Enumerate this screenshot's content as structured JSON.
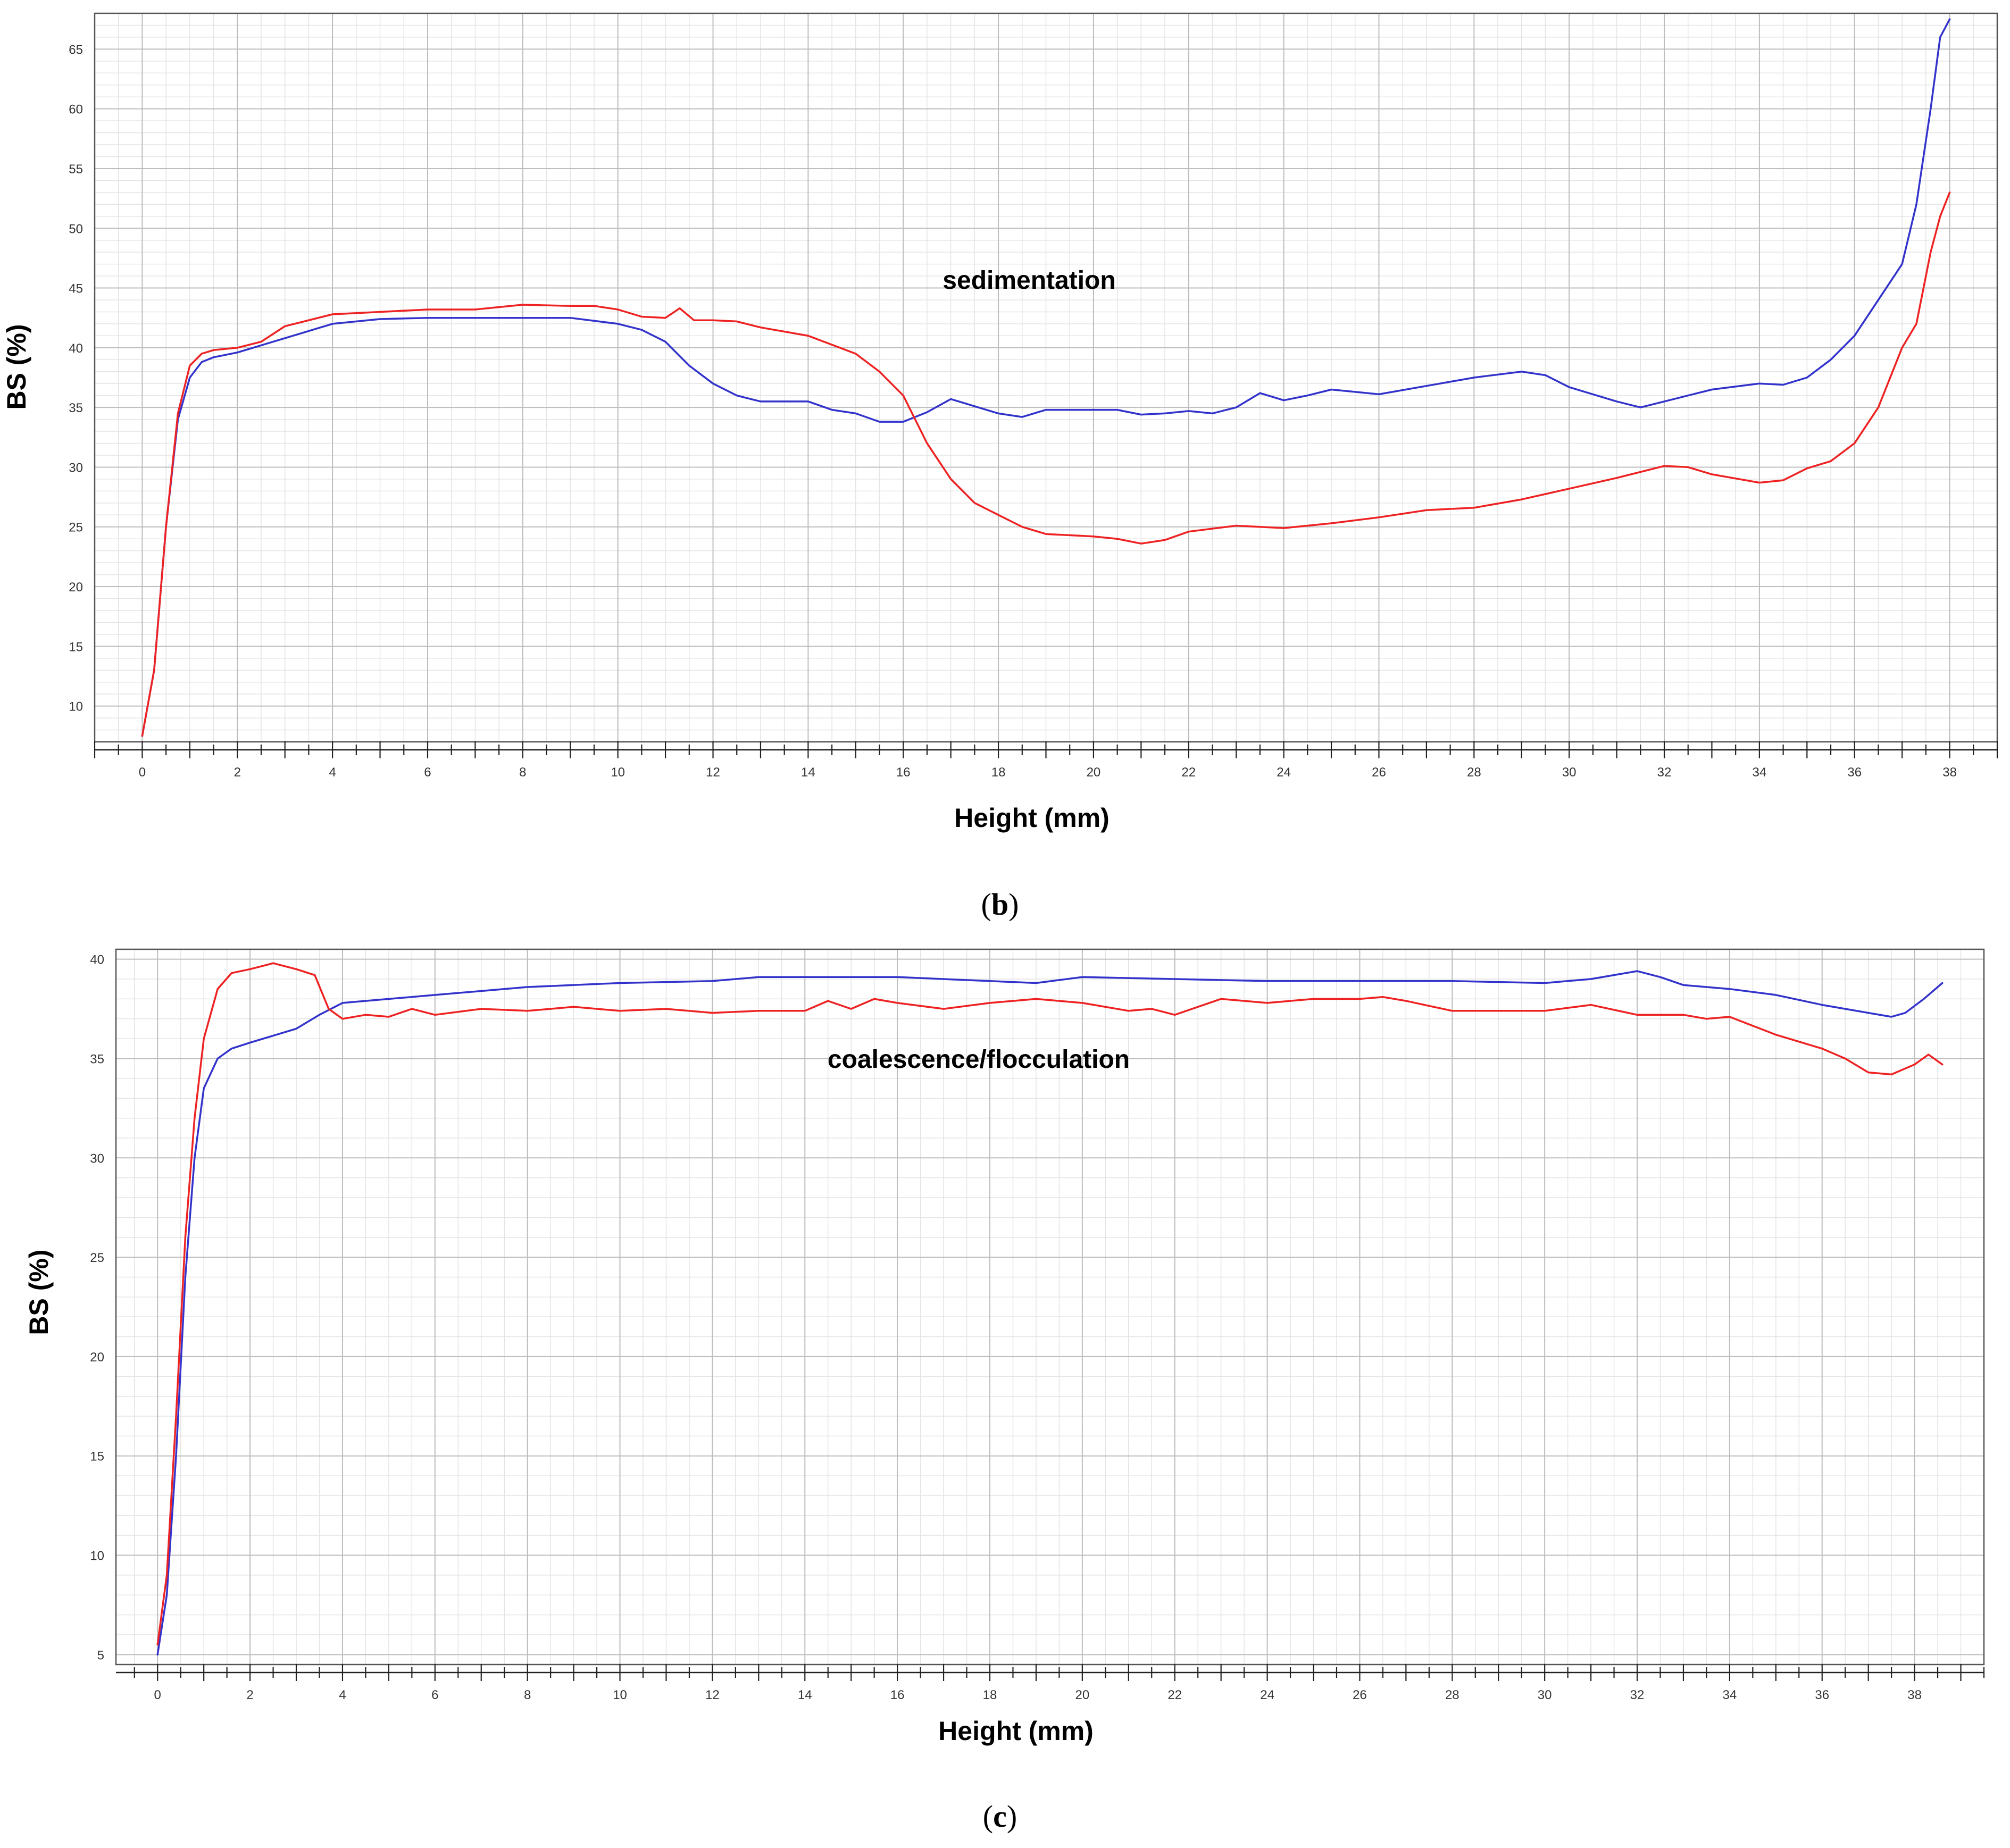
{
  "chart_data": [
    {
      "type": "line",
      "panel_label": "b",
      "annotation": "sedimentation",
      "xlabel": "Height (mm)",
      "ylabel": "BS  (%)",
      "xlim": [
        -1,
        39
      ],
      "ylim": [
        7,
        68
      ],
      "x_ticks": [
        0,
        2,
        4,
        6,
        8,
        10,
        12,
        14,
        16,
        18,
        20,
        22,
        24,
        26,
        28,
        30,
        32,
        34,
        36,
        38
      ],
      "y_ticks": [
        10,
        15,
        20,
        25,
        30,
        35,
        40,
        45,
        50,
        55,
        60,
        65
      ],
      "grid": true,
      "legend": "none",
      "series": [
        {
          "color": "#3333cc",
          "points": [
            [
              0,
              7.5
            ],
            [
              0.25,
              13
            ],
            [
              0.5,
              25
            ],
            [
              0.75,
              34
            ],
            [
              1,
              37.5
            ],
            [
              1.25,
              38.8
            ],
            [
              1.5,
              39.2
            ],
            [
              2,
              39.6
            ],
            [
              3,
              40.8
            ],
            [
              4,
              42
            ],
            [
              5,
              42.4
            ],
            [
              6,
              42.5
            ],
            [
              8,
              42.5
            ],
            [
              9,
              42.5
            ],
            [
              10,
              42
            ],
            [
              10.5,
              41.5
            ],
            [
              11,
              40.5
            ],
            [
              11.5,
              38.5
            ],
            [
              12,
              37
            ],
            [
              12.5,
              36
            ],
            [
              13,
              35.5
            ],
            [
              14,
              35.5
            ],
            [
              14.5,
              34.8
            ],
            [
              15,
              34.5
            ],
            [
              15.5,
              33.8
            ],
            [
              16,
              33.8
            ],
            [
              16.5,
              34.6
            ],
            [
              17,
              35.7
            ],
            [
              17.5,
              35.1
            ],
            [
              18,
              34.5
            ],
            [
              18.5,
              34.2
            ],
            [
              19,
              34.8
            ],
            [
              20,
              34.8
            ],
            [
              20.5,
              34.8
            ],
            [
              21,
              34.4
            ],
            [
              21.5,
              34.5
            ],
            [
              22,
              34.7
            ],
            [
              22.5,
              34.5
            ],
            [
              23,
              35
            ],
            [
              23.5,
              36.2
            ],
            [
              24,
              35.6
            ],
            [
              24.5,
              36
            ],
            [
              25,
              36.5
            ],
            [
              26,
              36.1
            ],
            [
              27,
              36.8
            ],
            [
              28,
              37.5
            ],
            [
              29,
              38
            ],
            [
              29.5,
              37.7
            ],
            [
              30,
              36.7
            ],
            [
              31,
              35.5
            ],
            [
              31.5,
              35
            ],
            [
              32,
              35.5
            ],
            [
              33,
              36.5
            ],
            [
              34,
              37
            ],
            [
              34.5,
              36.9
            ],
            [
              35,
              37.5
            ],
            [
              35.5,
              39
            ],
            [
              36,
              41
            ],
            [
              36.5,
              44
            ],
            [
              37,
              47
            ],
            [
              37.3,
              52
            ],
            [
              37.6,
              60
            ],
            [
              37.8,
              66
            ],
            [
              38,
              67.5
            ]
          ]
        },
        {
          "color": "#ee2222",
          "points": [
            [
              0,
              7.5
            ],
            [
              0.25,
              13
            ],
            [
              0.5,
              25
            ],
            [
              0.75,
              34.5
            ],
            [
              1,
              38.5
            ],
            [
              1.25,
              39.5
            ],
            [
              1.5,
              39.8
            ],
            [
              2,
              40
            ],
            [
              2.5,
              40.5
            ],
            [
              3,
              41.8
            ],
            [
              4,
              42.8
            ],
            [
              5,
              43
            ],
            [
              6,
              43.2
            ],
            [
              7,
              43.2
            ],
            [
              8,
              43.6
            ],
            [
              9,
              43.5
            ],
            [
              9.5,
              43.5
            ],
            [
              10,
              43.2
            ],
            [
              10.5,
              42.6
            ],
            [
              11,
              42.5
            ],
            [
              11.3,
              43.3
            ],
            [
              11.6,
              42.3
            ],
            [
              12,
              42.3
            ],
            [
              12.5,
              42.2
            ],
            [
              13,
              41.7
            ],
            [
              14,
              41
            ],
            [
              15,
              39.5
            ],
            [
              15.5,
              38
            ],
            [
              16,
              36
            ],
            [
              16.5,
              32
            ],
            [
              17,
              29
            ],
            [
              17.5,
              27
            ],
            [
              18,
              26
            ],
            [
              18.5,
              25
            ],
            [
              19,
              24.4
            ],
            [
              20,
              24.2
            ],
            [
              20.5,
              24
            ],
            [
              21,
              23.6
            ],
            [
              21.5,
              23.9
            ],
            [
              22,
              24.6
            ],
            [
              23,
              25.1
            ],
            [
              24,
              24.9
            ],
            [
              25,
              25.3
            ],
            [
              26,
              25.8
            ],
            [
              27,
              26.4
            ],
            [
              28,
              26.6
            ],
            [
              29,
              27.3
            ],
            [
              30,
              28.2
            ],
            [
              31,
              29.1
            ],
            [
              32,
              30.1
            ],
            [
              32.5,
              30
            ],
            [
              33,
              29.4
            ],
            [
              34,
              28.7
            ],
            [
              34.5,
              28.9
            ],
            [
              35,
              29.9
            ],
            [
              35.5,
              30.5
            ],
            [
              36,
              32
            ],
            [
              36.5,
              35
            ],
            [
              37,
              40
            ],
            [
              37.3,
              42
            ],
            [
              37.6,
              48
            ],
            [
              37.8,
              51
            ],
            [
              38,
              53
            ]
          ]
        }
      ]
    },
    {
      "type": "line",
      "panel_label": "c",
      "annotation": "coalescence/flocculation",
      "xlabel": "Height (mm)",
      "ylabel": "BS  (%)",
      "xlim": [
        -0.9,
        39.5
      ],
      "ylim": [
        4.5,
        40.5
      ],
      "x_ticks": [
        0,
        2,
        4,
        6,
        8,
        10,
        12,
        14,
        16,
        18,
        20,
        22,
        24,
        26,
        28,
        30,
        32,
        34,
        36,
        38
      ],
      "y_ticks": [
        5,
        10,
        15,
        20,
        25,
        30,
        35,
        40
      ],
      "grid": true,
      "legend": "none",
      "series": [
        {
          "color": "#3333cc",
          "points": [
            [
              0,
              5
            ],
            [
              0.2,
              8
            ],
            [
              0.4,
              15
            ],
            [
              0.6,
              24
            ],
            [
              0.8,
              30
            ],
            [
              1,
              33.5
            ],
            [
              1.3,
              35
            ],
            [
              1.6,
              35.5
            ],
            [
              2,
              35.8
            ],
            [
              3,
              36.5
            ],
            [
              3.5,
              37.2
            ],
            [
              4,
              37.8
            ],
            [
              5,
              38
            ],
            [
              6,
              38.2
            ],
            [
              7,
              38.4
            ],
            [
              8,
              38.6
            ],
            [
              10,
              38.8
            ],
            [
              12,
              38.9
            ],
            [
              13,
              39.1
            ],
            [
              14,
              39.1
            ],
            [
              16,
              39.1
            ],
            [
              18,
              38.9
            ],
            [
              19,
              38.8
            ],
            [
              20,
              39.1
            ],
            [
              22,
              39
            ],
            [
              24,
              38.9
            ],
            [
              26,
              38.9
            ],
            [
              28,
              38.9
            ],
            [
              30,
              38.8
            ],
            [
              31,
              39
            ],
            [
              32,
              39.4
            ],
            [
              32.5,
              39.1
            ],
            [
              33,
              38.7
            ],
            [
              34,
              38.5
            ],
            [
              35,
              38.2
            ],
            [
              36,
              37.7
            ],
            [
              37,
              37.3
            ],
            [
              37.5,
              37.1
            ],
            [
              37.8,
              37.3
            ],
            [
              38.2,
              38
            ],
            [
              38.6,
              38.8
            ]
          ]
        },
        {
          "color": "#ee2222",
          "points": [
            [
              0,
              5.5
            ],
            [
              0.2,
              9
            ],
            [
              0.4,
              17
            ],
            [
              0.6,
              26
            ],
            [
              0.8,
              32
            ],
            [
              1,
              36
            ],
            [
              1.3,
              38.5
            ],
            [
              1.6,
              39.3
            ],
            [
              2,
              39.5
            ],
            [
              2.5,
              39.8
            ],
            [
              3,
              39.5
            ],
            [
              3.4,
              39.2
            ],
            [
              3.7,
              37.5
            ],
            [
              4,
              37
            ],
            [
              4.5,
              37.2
            ],
            [
              5,
              37.1
            ],
            [
              5.5,
              37.5
            ],
            [
              6,
              37.2
            ],
            [
              7,
              37.5
            ],
            [
              8,
              37.4
            ],
            [
              9,
              37.6
            ],
            [
              10,
              37.4
            ],
            [
              11,
              37.5
            ],
            [
              12,
              37.3
            ],
            [
              13,
              37.4
            ],
            [
              14,
              37.4
            ],
            [
              14.5,
              37.9
            ],
            [
              15,
              37.5
            ],
            [
              15.5,
              38
            ],
            [
              16,
              37.8
            ],
            [
              17,
              37.5
            ],
            [
              18,
              37.8
            ],
            [
              19,
              38
            ],
            [
              20,
              37.8
            ],
            [
              21,
              37.4
            ],
            [
              21.5,
              37.5
            ],
            [
              22,
              37.2
            ],
            [
              23,
              38
            ],
            [
              24,
              37.8
            ],
            [
              25,
              38
            ],
            [
              26,
              38
            ],
            [
              26.5,
              38.1
            ],
            [
              27,
              37.9
            ],
            [
              28,
              37.4
            ],
            [
              29,
              37.4
            ],
            [
              30,
              37.4
            ],
            [
              31,
              37.7
            ],
            [
              32,
              37.2
            ],
            [
              33,
              37.2
            ],
            [
              33.5,
              37
            ],
            [
              34,
              37.1
            ],
            [
              35,
              36.2
            ],
            [
              36,
              35.5
            ],
            [
              36.5,
              35
            ],
            [
              37,
              34.3
            ],
            [
              37.5,
              34.2
            ],
            [
              38,
              34.7
            ],
            [
              38.3,
              35.2
            ],
            [
              38.6,
              34.7
            ]
          ]
        }
      ]
    }
  ]
}
